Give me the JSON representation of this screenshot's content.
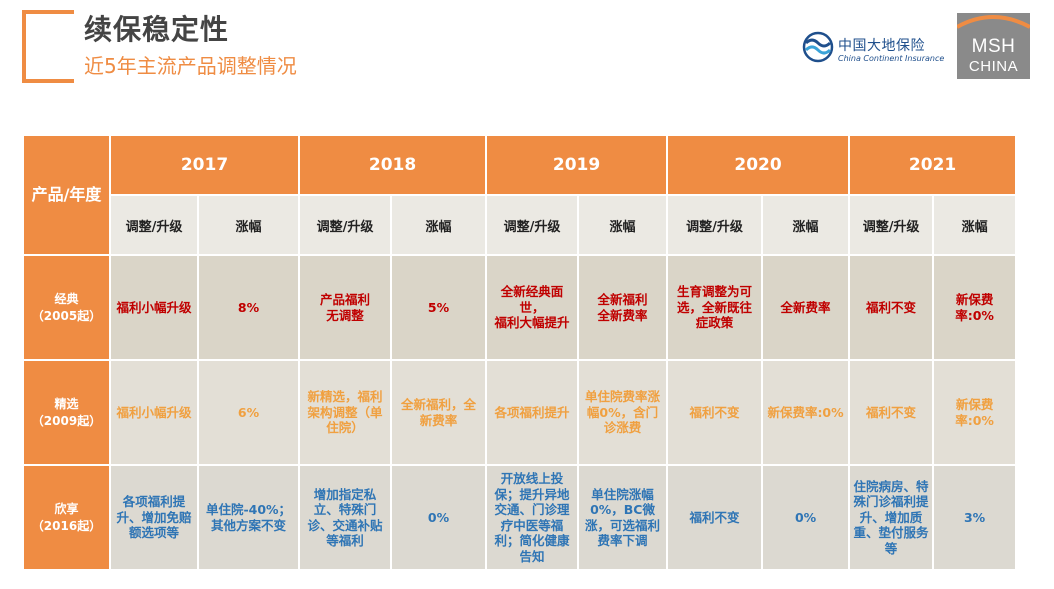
{
  "header": {
    "title": "续保稳定性",
    "subtitle": "近5年主流产品调整情况"
  },
  "logos": {
    "cci_cn": "中国大地保险",
    "cci_en": "China Continent Insurance",
    "msh_line1": "MSH",
    "msh_line2": "CHINA"
  },
  "table": {
    "corner_label": "产品/年度",
    "years": [
      "2017",
      "2018",
      "2019",
      "2020",
      "2021"
    ],
    "sub_headers": {
      "adjust": "调整/升级",
      "increase": "涨幅"
    },
    "rows": [
      {
        "name": "经典",
        "since": "（2005起）",
        "cells": [
          "福利小幅升级",
          "8%",
          "产品福利\n无调整",
          "5%",
          "全新经典面世，\n福利大幅提升",
          "全新福利\n全新费率",
          "生育调整为可选，全新既往症政策",
          "全新费率",
          "福利不变",
          "新保费率:0%"
        ]
      },
      {
        "name": "精选",
        "since": "（2009起）",
        "cells": [
          "福利小幅升级",
          "6%",
          "新精选，福利架构调整（单住院）",
          "全新福利，全新费率",
          "各项福利提升",
          "单住院费率涨幅0%，含门诊涨费",
          "福利不变",
          "新保费率:0%",
          "福利不变",
          "新保费率:0%"
        ]
      },
      {
        "name": "欣享",
        "since": "（2016起）",
        "cells": [
          "各项福利提升、增加免赔额选项等",
          "单住院-40%；其他方案不变",
          "增加指定私立、特殊门诊、交通补贴等福利",
          "0%",
          "开放线上投保；提升异地交通、门诊理疗中医等福利；简化健康告知",
          "单住院涨幅0%，BC微涨，可选福利费率下调",
          "福利不变",
          "0%",
          "住院病房、特殊门诊福利提升、增加质重、垫付服务等",
          "3%"
        ]
      }
    ]
  },
  "colors": {
    "accent": "#ef8c43",
    "header_text": "#ffffff",
    "row1_text": "#c00000",
    "row2_text": "#f0a040",
    "row3_text": "#2f75b5"
  }
}
